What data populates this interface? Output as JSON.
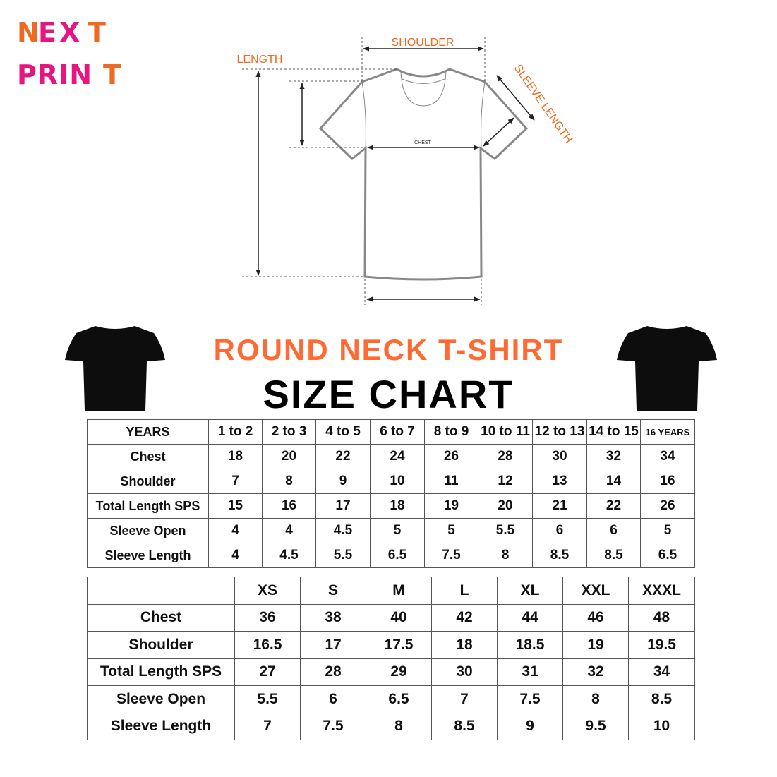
{
  "logo": {
    "line1": "NEXT",
    "line2": "PRINT",
    "colors": {
      "orange": "#ee6a22",
      "pink": "#e6157f"
    }
  },
  "diagram": {
    "shoulder": "SHOULDER",
    "length": "LENGTH",
    "sleeve_length": "SLEEVE LENGTH",
    "chest": "CHEST"
  },
  "title": {
    "line1": "ROUND NECK T-SHIRT",
    "line2": "SIZE CHART",
    "accent": "#ff6a33"
  },
  "kids_table": {
    "headers": [
      "YEARS",
      "1 to 2",
      "2 to 3",
      "4 to 5",
      "6 to 7",
      "8 to 9",
      "10 to 11",
      "12 to 13",
      "14 to 15",
      "16 YEARS"
    ],
    "rows": [
      [
        "Chest",
        "18",
        "20",
        "22",
        "24",
        "26",
        "28",
        "30",
        "32",
        "34"
      ],
      [
        "Shoulder",
        "7",
        "8",
        "9",
        "10",
        "11",
        "12",
        "13",
        "14",
        "16"
      ],
      [
        "Total Length SPS",
        "15",
        "16",
        "17",
        "18",
        "19",
        "20",
        "21",
        "22",
        "26"
      ],
      [
        "Sleeve Open",
        "4",
        "4",
        "4.5",
        "5",
        "5",
        "5.5",
        "6",
        "6",
        "5"
      ],
      [
        "Sleeve Length",
        "4",
        "4.5",
        "5.5",
        "6.5",
        "7.5",
        "8",
        "8.5",
        "8.5",
        "6.5"
      ]
    ]
  },
  "adult_table": {
    "headers": [
      "",
      "XS",
      "S",
      "M",
      "L",
      "XL",
      "XXL",
      "XXXL"
    ],
    "rows": [
      [
        "Chest",
        "36",
        "38",
        "40",
        "42",
        "44",
        "46",
        "48"
      ],
      [
        "Shoulder",
        "16.5",
        "17",
        "17.5",
        "18",
        "18.5",
        "19",
        "19.5"
      ],
      [
        "Total Length SPS",
        "27",
        "28",
        "29",
        "30",
        "31",
        "32",
        "34"
      ],
      [
        "Sleeve Open",
        "5.5",
        "6",
        "6.5",
        "7",
        "7.5",
        "8",
        "8.5"
      ],
      [
        "Sleeve Length",
        "7",
        "7.5",
        "8",
        "8.5",
        "9",
        "9.5",
        "10"
      ]
    ]
  }
}
